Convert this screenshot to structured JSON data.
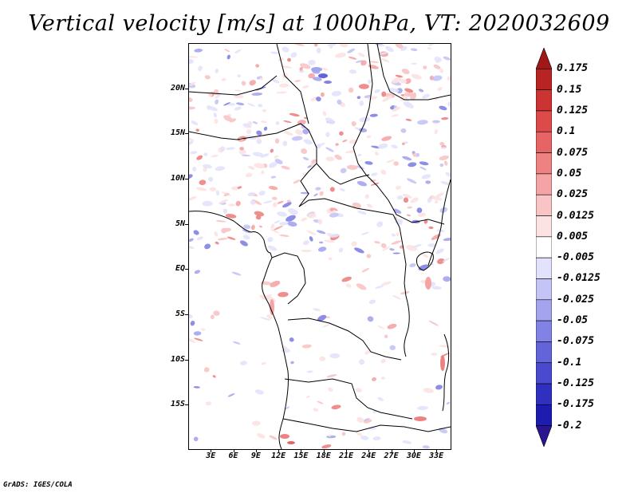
{
  "title": "Vertical velocity [m/s] at 1000hPa, VT: 2020032609",
  "credit": "GrADS: IGES/COLA",
  "map": {
    "region": "Central Africa",
    "lon_range": [
      0,
      35
    ],
    "lat_range": [
      -20,
      25
    ],
    "lat_labels": [
      {
        "lat": 20,
        "label": "20N"
      },
      {
        "lat": 15,
        "label": "15N"
      },
      {
        "lat": 10,
        "label": "10N"
      },
      {
        "lat": 5,
        "label": "5N"
      },
      {
        "lat": 0,
        "label": "EQ"
      },
      {
        "lat": -5,
        "label": "5S"
      },
      {
        "lat": -10,
        "label": "10S"
      },
      {
        "lat": -15,
        "label": "15S"
      }
    ],
    "lon_labels": [
      {
        "lon": 3,
        "label": "3E"
      },
      {
        "lon": 6,
        "label": "6E"
      },
      {
        "lon": 9,
        "label": "9E"
      },
      {
        "lon": 12,
        "label": "12E"
      },
      {
        "lon": 15,
        "label": "15E"
      },
      {
        "lon": 18,
        "label": "18E"
      },
      {
        "lon": 21,
        "label": "21E"
      },
      {
        "lon": 24,
        "label": "24E"
      },
      {
        "lon": 27,
        "label": "27E"
      },
      {
        "lon": 30,
        "label": "30E"
      },
      {
        "lon": 33,
        "label": "33E"
      }
    ]
  },
  "colorbar": {
    "labels": [
      "0.175",
      "0.15",
      "0.125",
      "0.1",
      "0.075",
      "0.05",
      "0.025",
      "0.0125",
      "0.005",
      "-0.005",
      "-0.0125",
      "-0.025",
      "-0.05",
      "-0.075",
      "-0.1",
      "-0.125",
      "-0.175",
      "-0.2"
    ],
    "colors": [
      "#a01818",
      "#b82424",
      "#cc3434",
      "#dc4a4a",
      "#e66464",
      "#ee8282",
      "#f4a4a4",
      "#f8c4c4",
      "#fce2e2",
      "#ffffff",
      "#e2e2fc",
      "#c4c4f6",
      "#a4a4ee",
      "#8282e4",
      "#6464da",
      "#4a4ace",
      "#3030c0",
      "#1c1cb0",
      "#2a1490"
    ]
  }
}
